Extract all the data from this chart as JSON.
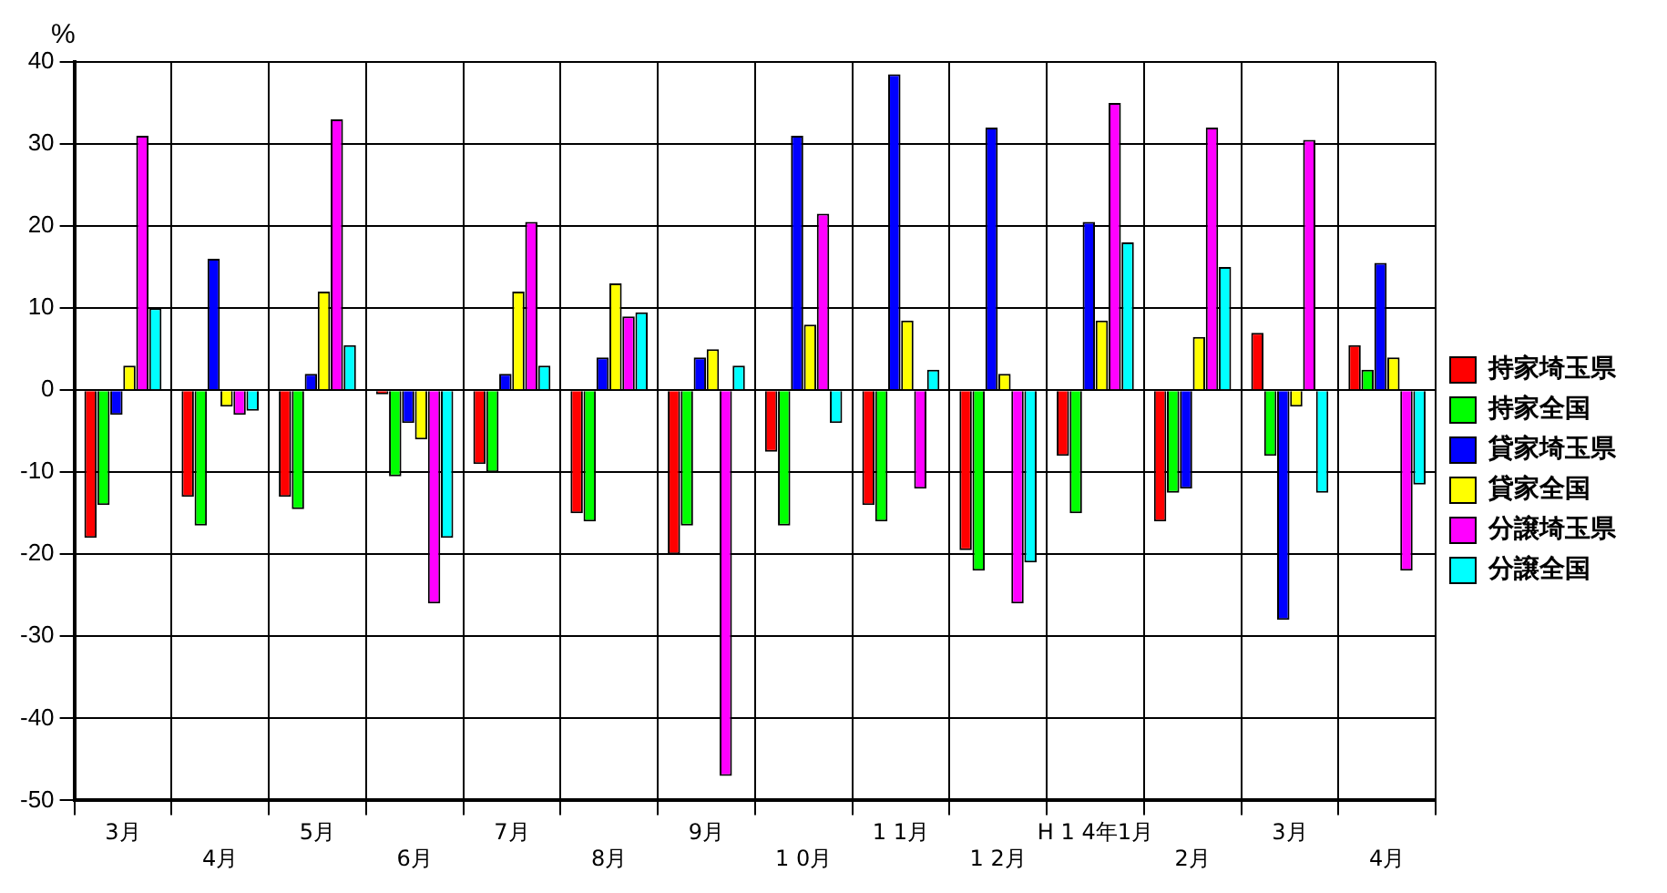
{
  "chart_data": {
    "type": "bar",
    "ylabel": "%",
    "categories": [
      "3月",
      "4月",
      "5月",
      "6月",
      "7月",
      "8月",
      "9月",
      "1 0月",
      "1 1月",
      "1 2月",
      "H 1 4年1月",
      "2月",
      "3月",
      "4月"
    ],
    "series": [
      {
        "name": "持家埼玉県",
        "color": "#ff0000",
        "values": [
          -18,
          -13,
          -13,
          -0.5,
          -9,
          -15,
          -20,
          -7.5,
          -14,
          -19.5,
          -8,
          -16,
          7,
          5.5
        ]
      },
      {
        "name": "持家全国",
        "color": "#00ff00",
        "values": [
          -14,
          -16.5,
          -14.5,
          -10.5,
          -10,
          -16,
          -16.5,
          -16.5,
          -16,
          -22,
          -15,
          -12.5,
          -8,
          2.5
        ]
      },
      {
        "name": "貸家埼玉県",
        "color": "#0000ff",
        "values": [
          -3,
          16,
          2,
          -4,
          2,
          4,
          4,
          31,
          38.5,
          32,
          20.5,
          -12,
          -28,
          15.5
        ]
      },
      {
        "name": "貸家全国",
        "color": "#ffff00",
        "values": [
          3,
          -2,
          12,
          -6,
          12,
          13,
          5,
          8,
          8.5,
          2,
          8.5,
          6.5,
          -2,
          4
        ]
      },
      {
        "name": "分譲埼玉県",
        "color": "#ff00ff",
        "values": [
          31,
          -3,
          33,
          -26,
          20.5,
          9,
          -47,
          21.5,
          -12,
          -26,
          35,
          32,
          30.5,
          -22
        ]
      },
      {
        "name": "分譲全国",
        "color": "#00ffff",
        "values": [
          10,
          -2.5,
          5.5,
          -18,
          3,
          9.5,
          3,
          -4,
          2.5,
          -21,
          18,
          15,
          -12.5,
          -11.5
        ]
      }
    ],
    "ylim": [
      -50,
      40
    ],
    "yticks": [
      -50,
      -40,
      -30,
      -20,
      -10,
      0,
      10,
      20,
      30,
      40
    ],
    "grid": true,
    "legend": "right"
  }
}
